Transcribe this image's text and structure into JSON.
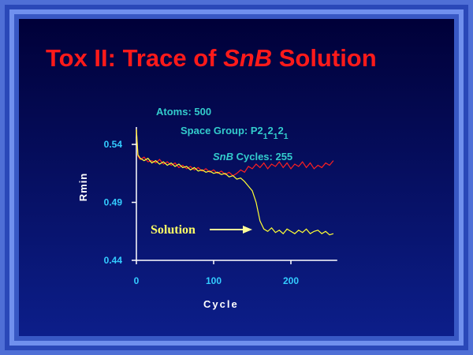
{
  "chart_data": {
    "type": "line",
    "title_parts": [
      {
        "text": "Tox II: Trace of "
      },
      {
        "text": "SnB",
        "style": "italic"
      },
      {
        "text": " Solution"
      }
    ],
    "annotations": [
      {
        "parts": [
          {
            "text": "Atoms: 500"
          }
        ]
      },
      {
        "parts": [
          {
            "text": "Space Group: P2"
          },
          {
            "text": "1",
            "style": "sub"
          },
          {
            "text": "2"
          },
          {
            "text": "1",
            "style": "sub"
          },
          {
            "text": "2"
          },
          {
            "text": "1",
            "style": "sub"
          }
        ]
      },
      {
        "parts": [
          {
            "text": "SnB",
            "style": "italic"
          },
          {
            "text": " Cycles: 255"
          }
        ]
      },
      {
        "parts": [
          {
            "text": "Solution"
          }
        ]
      }
    ],
    "xlabel": "Cycle",
    "ylabel": "Rmin",
    "x": [
      0,
      2,
      5,
      10,
      15,
      20,
      25,
      30,
      35,
      40,
      45,
      50,
      55,
      60,
      65,
      70,
      75,
      80,
      85,
      90,
      95,
      100,
      105,
      110,
      115,
      120,
      125,
      130,
      135,
      140,
      145,
      150,
      155,
      160,
      165,
      170,
      175,
      180,
      185,
      190,
      195,
      200,
      205,
      210,
      215,
      220,
      225,
      230,
      235,
      240,
      245,
      250,
      255
    ],
    "series": [
      {
        "color": "#ff2020",
        "values": [
          0.553,
          0.53,
          0.527,
          0.529,
          0.525,
          0.526,
          0.524,
          0.527,
          0.523,
          0.525,
          0.522,
          0.524,
          0.52,
          0.522,
          0.519,
          0.521,
          0.518,
          0.52,
          0.517,
          0.519,
          0.516,
          0.518,
          0.515,
          0.517,
          0.514,
          0.516,
          0.513,
          0.515,
          0.518,
          0.516,
          0.521,
          0.519,
          0.523,
          0.52,
          0.524,
          0.519,
          0.523,
          0.521,
          0.525,
          0.52,
          0.524,
          0.519,
          0.523,
          0.521,
          0.525,
          0.52,
          0.524,
          0.519,
          0.522,
          0.52,
          0.524,
          0.522,
          0.526
        ]
      },
      {
        "color": "#ffff33",
        "values": [
          0.553,
          0.531,
          0.528,
          0.526,
          0.528,
          0.524,
          0.526,
          0.523,
          0.525,
          0.522,
          0.524,
          0.521,
          0.523,
          0.52,
          0.521,
          0.518,
          0.52,
          0.517,
          0.518,
          0.516,
          0.517,
          0.515,
          0.516,
          0.514,
          0.515,
          0.512,
          0.513,
          0.51,
          0.511,
          0.508,
          0.504,
          0.5,
          0.49,
          0.474,
          0.467,
          0.465,
          0.468,
          0.464,
          0.466,
          0.463,
          0.467,
          0.465,
          0.463,
          0.466,
          0.464,
          0.467,
          0.463,
          0.465,
          0.466,
          0.463,
          0.465,
          0.462,
          0.463
        ]
      }
    ],
    "xlim": [
      0,
      260
    ],
    "xticks": [
      0,
      100,
      200
    ],
    "ylim": [
      0.44,
      0.555
    ],
    "yticks": [
      0.44,
      0.49,
      0.54
    ]
  }
}
